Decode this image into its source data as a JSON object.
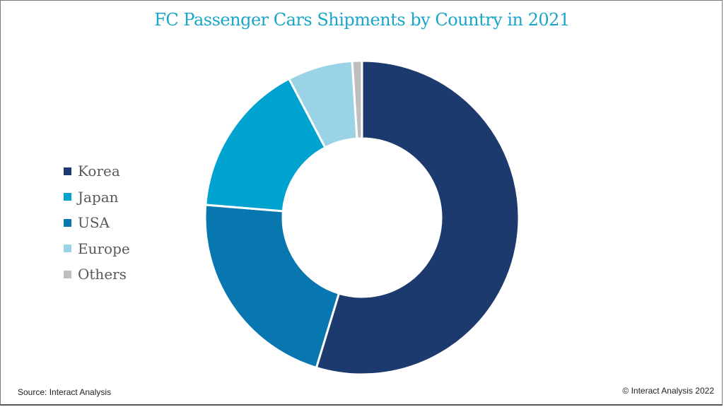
{
  "chart_data": {
    "type": "pie",
    "subtype": "donut",
    "title": "FC Passenger Cars Shipments by Country in 2021",
    "categories": [
      "Korea",
      "Japan",
      "USA",
      "Europe",
      "Others"
    ],
    "values": [
      54.7,
      16.0,
      21.6,
      6.7,
      1.0
    ],
    "unit": "%",
    "slice_order_clockwise_from_top": [
      "Korea",
      "USA",
      "Japan",
      "Europe",
      "Others"
    ],
    "colors": {
      "Korea": "#1c3a6e",
      "Japan": "#00a2d0",
      "USA": "#0877b0",
      "Europe": "#9ad3e6",
      "Others": "#bfbfbf"
    },
    "legend": {
      "position": "left",
      "entries": [
        "Korea",
        "Japan",
        "USA",
        "Europe",
        "Others"
      ]
    }
  },
  "footer": {
    "source": "Source: Interact Analysis",
    "copyright": "© Interact Analysis 2022"
  }
}
